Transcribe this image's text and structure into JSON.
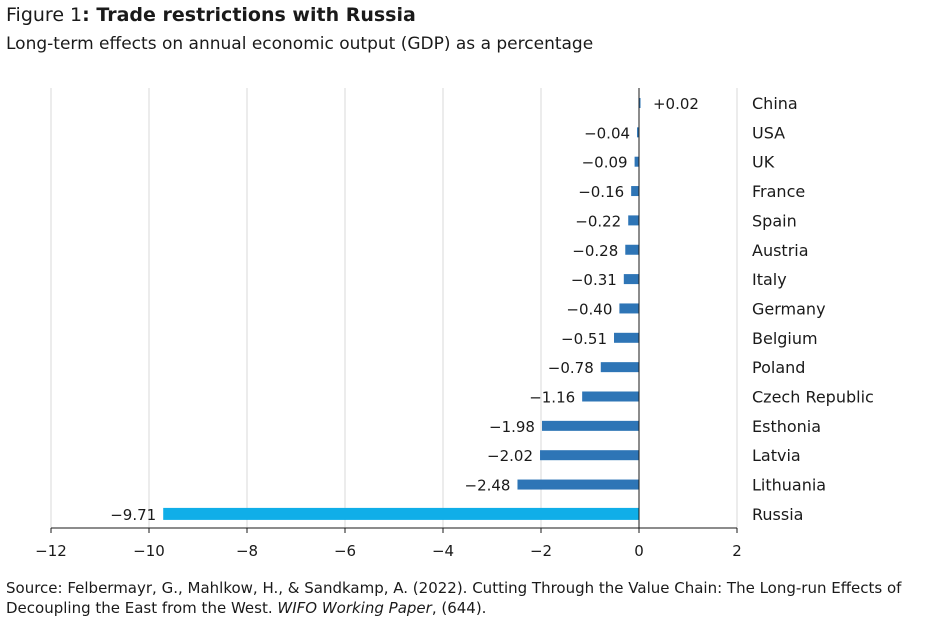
{
  "figure": {
    "label": "Figure 1",
    "colon": ": ",
    "title": "Trade restrictions with Russia",
    "subtitle": "Long-term effects on annual economic output (GDP) as a percentage"
  },
  "source": {
    "prefix": "Source: Felbermayr, G., Mahlkow, H., & Sandkamp, A. (2022). Cutting Through the Value Chain: The Long-run Effects of Decoupling the East from the West. ",
    "journal": "WIFO Working Paper",
    "suffix": ", (644)."
  },
  "chart_data": {
    "type": "bar",
    "orientation": "horizontal",
    "title": "Trade restrictions with Russia",
    "subtitle": "Long-term effects on annual economic output (GDP) as a percentage",
    "xlim": [
      -12,
      2
    ],
    "xticks": [
      -12,
      -10,
      -8,
      -6,
      -4,
      -2,
      0,
      2
    ],
    "xtick_labels": [
      "−12",
      "−10",
      "−8",
      "−6",
      "−4",
      "−2",
      "0",
      "2"
    ],
    "grid": "vertical",
    "categories": [
      "China",
      "USA",
      "UK",
      "France",
      "Spain",
      "Austria",
      "Italy",
      "Germany",
      "Belgium",
      "Poland",
      "Czech Republic",
      "Esthonia",
      "Latvia",
      "Lithuania",
      "Russia"
    ],
    "values": [
      0.02,
      -0.04,
      -0.09,
      -0.16,
      -0.22,
      -0.28,
      -0.31,
      -0.4,
      -0.51,
      -0.78,
      -1.16,
      -1.98,
      -2.02,
      -2.48,
      -9.71
    ],
    "value_labels": [
      "+0.02",
      "−0.04",
      "−0.09",
      "−0.16",
      "−0.22",
      "−0.28",
      "−0.31",
      "−0.40",
      "−0.51",
      "−0.78",
      "−1.16",
      "−1.98",
      "−2.02",
      "−2.48",
      "−9.71"
    ],
    "colors": {
      "default": "#2e75b6",
      "highlight": "#10aee8",
      "grid": "#d9d9d9",
      "axis": "#1a1a1a"
    },
    "highlight_category": "Russia"
  }
}
